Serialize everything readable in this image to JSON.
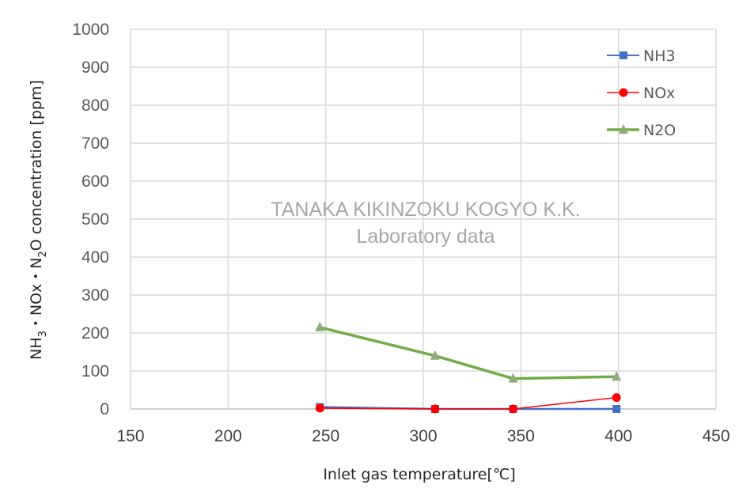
{
  "chart_data": {
    "type": "line",
    "title": "",
    "xlabel": "Inlet gas temperature[℃]",
    "ylabel_parts": [
      "NH",
      "3",
      "・NOx・N",
      "2",
      "O concentration [ppm]"
    ],
    "ylabel": "NH3・NOx・N2O concentration [ppm]",
    "xlim": [
      150,
      450
    ],
    "ylim": [
      0,
      1000
    ],
    "xticks": [
      150,
      200,
      250,
      300,
      350,
      400,
      450
    ],
    "yticks": [
      0,
      100,
      200,
      300,
      400,
      500,
      600,
      700,
      800,
      900,
      1000
    ],
    "grid": true,
    "legend_position": "top-right",
    "x": [
      247,
      306,
      346,
      399
    ],
    "series": [
      {
        "name": "NH3",
        "color": "#4472c4",
        "marker": "square",
        "values": [
          5,
          0,
          0,
          0
        ]
      },
      {
        "name": "NOx",
        "color": "#ff0000",
        "marker": "circle",
        "values": [
          2,
          0,
          0,
          30
        ]
      },
      {
        "name": "N2O",
        "color": "#70ad47",
        "marker": "triangle",
        "marker_color": "#8faa7c",
        "values": [
          215,
          140,
          80,
          85
        ]
      }
    ],
    "annotations": [
      "TANAKA KIKINZOKU KOGYO K.K.",
      "Laboratory data"
    ]
  },
  "watermark": {
    "line1": "TANAKA KIKINZOKU KOGYO K.K.",
    "line2": "Laboratory data"
  }
}
